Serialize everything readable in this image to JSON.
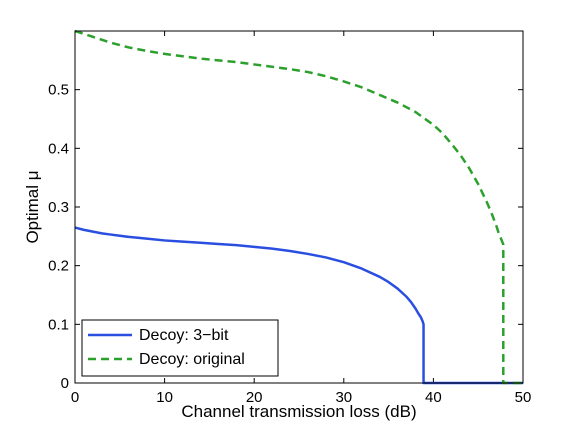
{
  "chart_data": {
    "type": "line",
    "xlabel": "Channel transmission loss (dB)",
    "ylabel": "Optimal μ",
    "xlim": [
      0,
      50
    ],
    "ylim": [
      0,
      0.6
    ],
    "xticks": [
      0,
      10,
      20,
      30,
      40,
      50
    ],
    "yticks": [
      0,
      0.1,
      0.2,
      0.3,
      0.4,
      0.5
    ],
    "xtick_labels": [
      "0",
      "10",
      "20",
      "30",
      "40",
      "50"
    ],
    "ytick_labels": [
      "0",
      "0.1",
      "0.2",
      "0.3",
      "0.4",
      "0.5"
    ],
    "grid": false,
    "legend_position": "bottom-left",
    "series": [
      {
        "name": "Decoy: 3−bit",
        "color": "#2a4fe0",
        "style": "solid",
        "x": [
          0,
          1,
          2,
          3,
          4,
          5,
          6,
          8,
          10,
          12,
          14,
          16,
          18,
          20,
          22,
          24,
          26,
          28,
          30,
          32,
          34,
          35,
          36,
          37,
          37.5,
          38,
          38.3,
          38.6,
          38.8,
          38.9,
          38.9,
          39.2,
          40,
          44,
          48,
          50
        ],
        "y": [
          0.265,
          0.261,
          0.258,
          0.255,
          0.253,
          0.251,
          0.249,
          0.246,
          0.243,
          0.241,
          0.239,
          0.237,
          0.235,
          0.232,
          0.229,
          0.225,
          0.22,
          0.214,
          0.206,
          0.195,
          0.181,
          0.172,
          0.161,
          0.147,
          0.138,
          0.127,
          0.119,
          0.112,
          0.105,
          0.1,
          0.0,
          0.0,
          0.0,
          0.0,
          0.0,
          0.0
        ]
      },
      {
        "name": "Decoy: original",
        "color": "#2ca02c",
        "style": "dashed",
        "x": [
          0,
          2,
          4,
          6,
          8,
          10,
          12,
          14,
          16,
          18,
          20,
          22,
          24,
          26,
          28,
          30,
          32,
          34,
          36,
          38,
          40,
          41,
          42,
          43,
          44,
          45,
          46,
          46.5,
          47,
          47.3,
          47.6,
          47.8,
          47.8,
          48.5,
          50
        ],
        "y": [
          0.6,
          0.59,
          0.58,
          0.572,
          0.566,
          0.561,
          0.557,
          0.553,
          0.55,
          0.547,
          0.543,
          0.539,
          0.535,
          0.53,
          0.523,
          0.514,
          0.504,
          0.491,
          0.478,
          0.462,
          0.44,
          0.426,
          0.408,
          0.389,
          0.366,
          0.339,
          0.307,
          0.289,
          0.269,
          0.255,
          0.244,
          0.236,
          0.0,
          0.0,
          0.0
        ]
      }
    ]
  }
}
